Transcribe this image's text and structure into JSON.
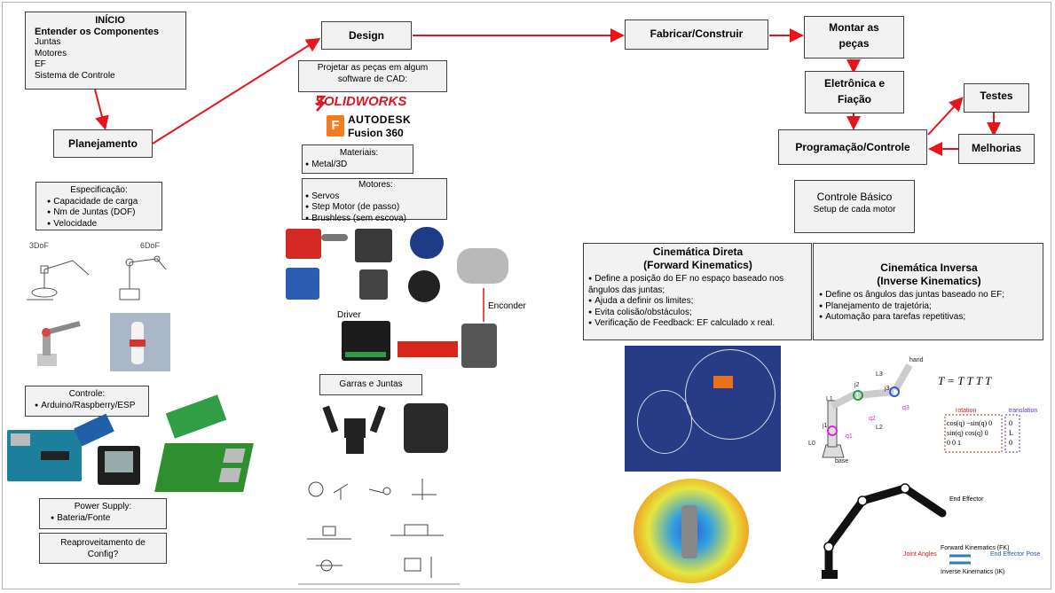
{
  "inicio": {
    "title": "INÍCIO",
    "subtitle": "Entender os Componentes",
    "items": [
      "Juntas",
      "Motores",
      "EF",
      "Sistema de Controle"
    ]
  },
  "planejamento": {
    "label": "Planejamento"
  },
  "especificacao": {
    "title": "Especificação:",
    "items": [
      "Capacidade de carga",
      "Nm de Juntas (DOF)",
      "Velocidade"
    ]
  },
  "dof_labels": {
    "three": "3DoF",
    "six": "6DoF"
  },
  "controle": {
    "title": "Controle:",
    "items": [
      "Arduino/Raspberry/ESP"
    ]
  },
  "power": {
    "title": "Power Supply:",
    "items": [
      "Bateria/Fonte"
    ]
  },
  "reaproveitamento": {
    "label": "Reaproveitamento de Config?"
  },
  "design": {
    "label": "Design"
  },
  "cad": {
    "label": "Projetar as peças em algum software de CAD:"
  },
  "logos": {
    "solidworks": "SOLIDWORKS",
    "autodesk": "AUTODESK",
    "fusion": "Fusion 360",
    "f": "F"
  },
  "materiais": {
    "title": "Materiais:",
    "items": [
      "Metal/3D"
    ]
  },
  "motores": {
    "title": "Motores:",
    "items": [
      "Servos",
      "Step Motor (de passo)",
      "Brushless (sem escova)"
    ]
  },
  "driver_label": "Driver",
  "encoder_label": "Enconder",
  "garras": {
    "label": "Garras e Juntas"
  },
  "fabricar": {
    "label": "Fabricar/Construir"
  },
  "montar": {
    "label": "Montar as peças"
  },
  "eletronica": {
    "label": "Eletrônica e Fiação"
  },
  "programacao": {
    "label": "Programação/Controle"
  },
  "testes": {
    "label": "Testes"
  },
  "melhorias": {
    "label": "Melhorias"
  },
  "controle_basico": {
    "title": "Controle Básico",
    "subtitle": "Setup de cada motor"
  },
  "cinematica_direta": {
    "title": "Cinemática Direta",
    "subtitle": "(Forward Kinematics)",
    "items": [
      "Define a posição do EF no espaço baseado nos ângulos das juntas;",
      "Ajuda a definir os limites;",
      "Evita colisão/obstáculos;",
      "Verificação de Feedback: EF calculado x real."
    ]
  },
  "cinematica_inversa": {
    "title": "Cinemática Inversa",
    "subtitle": "(Inverse Kinematics)",
    "items": [
      "Define os ângulos das juntas baseado no EF;",
      "Planejamento de trajetória;",
      "Automação para tarefas repetitivas;"
    ]
  },
  "fk_diagram": {
    "labels": [
      "hand",
      "L3",
      "j3",
      "q3",
      "j2",
      "L1",
      "q2",
      "L2",
      "j1",
      "q1",
      "L0",
      "base"
    ],
    "rotation": "rotation",
    "translation": "translation"
  },
  "ik_diagram": {
    "labels": [
      "End Effector",
      "Forward Kinematics (FK)",
      "Inverse Kinematics (IK)",
      "Joint Angles",
      "End Effector Pose"
    ]
  },
  "colors": {
    "arrow": "#e8141c",
    "box_bg": "#f2f2f2",
    "box_border": "#404040"
  }
}
